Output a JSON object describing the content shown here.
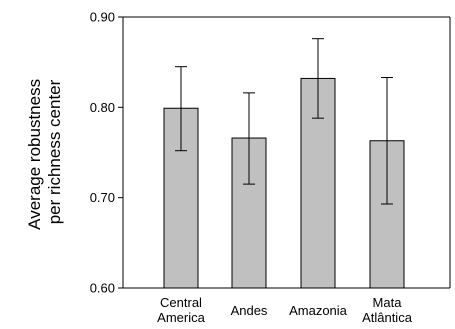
{
  "chart_data": {
    "type": "bar",
    "categories": [
      "Central America",
      "Andes",
      "Amazonia",
      "Mata Atlântica"
    ],
    "category_labels": [
      [
        "Central",
        "America"
      ],
      [
        "Andes"
      ],
      [
        "Amazonia"
      ],
      [
        "Mata",
        "Atlântica"
      ]
    ],
    "values": [
      0.799,
      0.766,
      0.832,
      0.763
    ],
    "error_lower": [
      0.752,
      0.715,
      0.788,
      0.693
    ],
    "error_upper": [
      0.845,
      0.816,
      0.876,
      0.833
    ],
    "ylabel_lines": [
      "Average robustness",
      "per richness center"
    ],
    "xlabel": "",
    "ylim": [
      0.6,
      0.9
    ],
    "yticks": [
      0.6,
      0.7,
      0.8,
      0.9
    ],
    "ytick_labels": [
      "0.60",
      "0.70",
      "0.80",
      "0.90"
    ],
    "grid": false,
    "colors": {
      "bar_fill": "#c0c0c0",
      "bar_stroke": "#000000",
      "axis": "#000000"
    }
  }
}
